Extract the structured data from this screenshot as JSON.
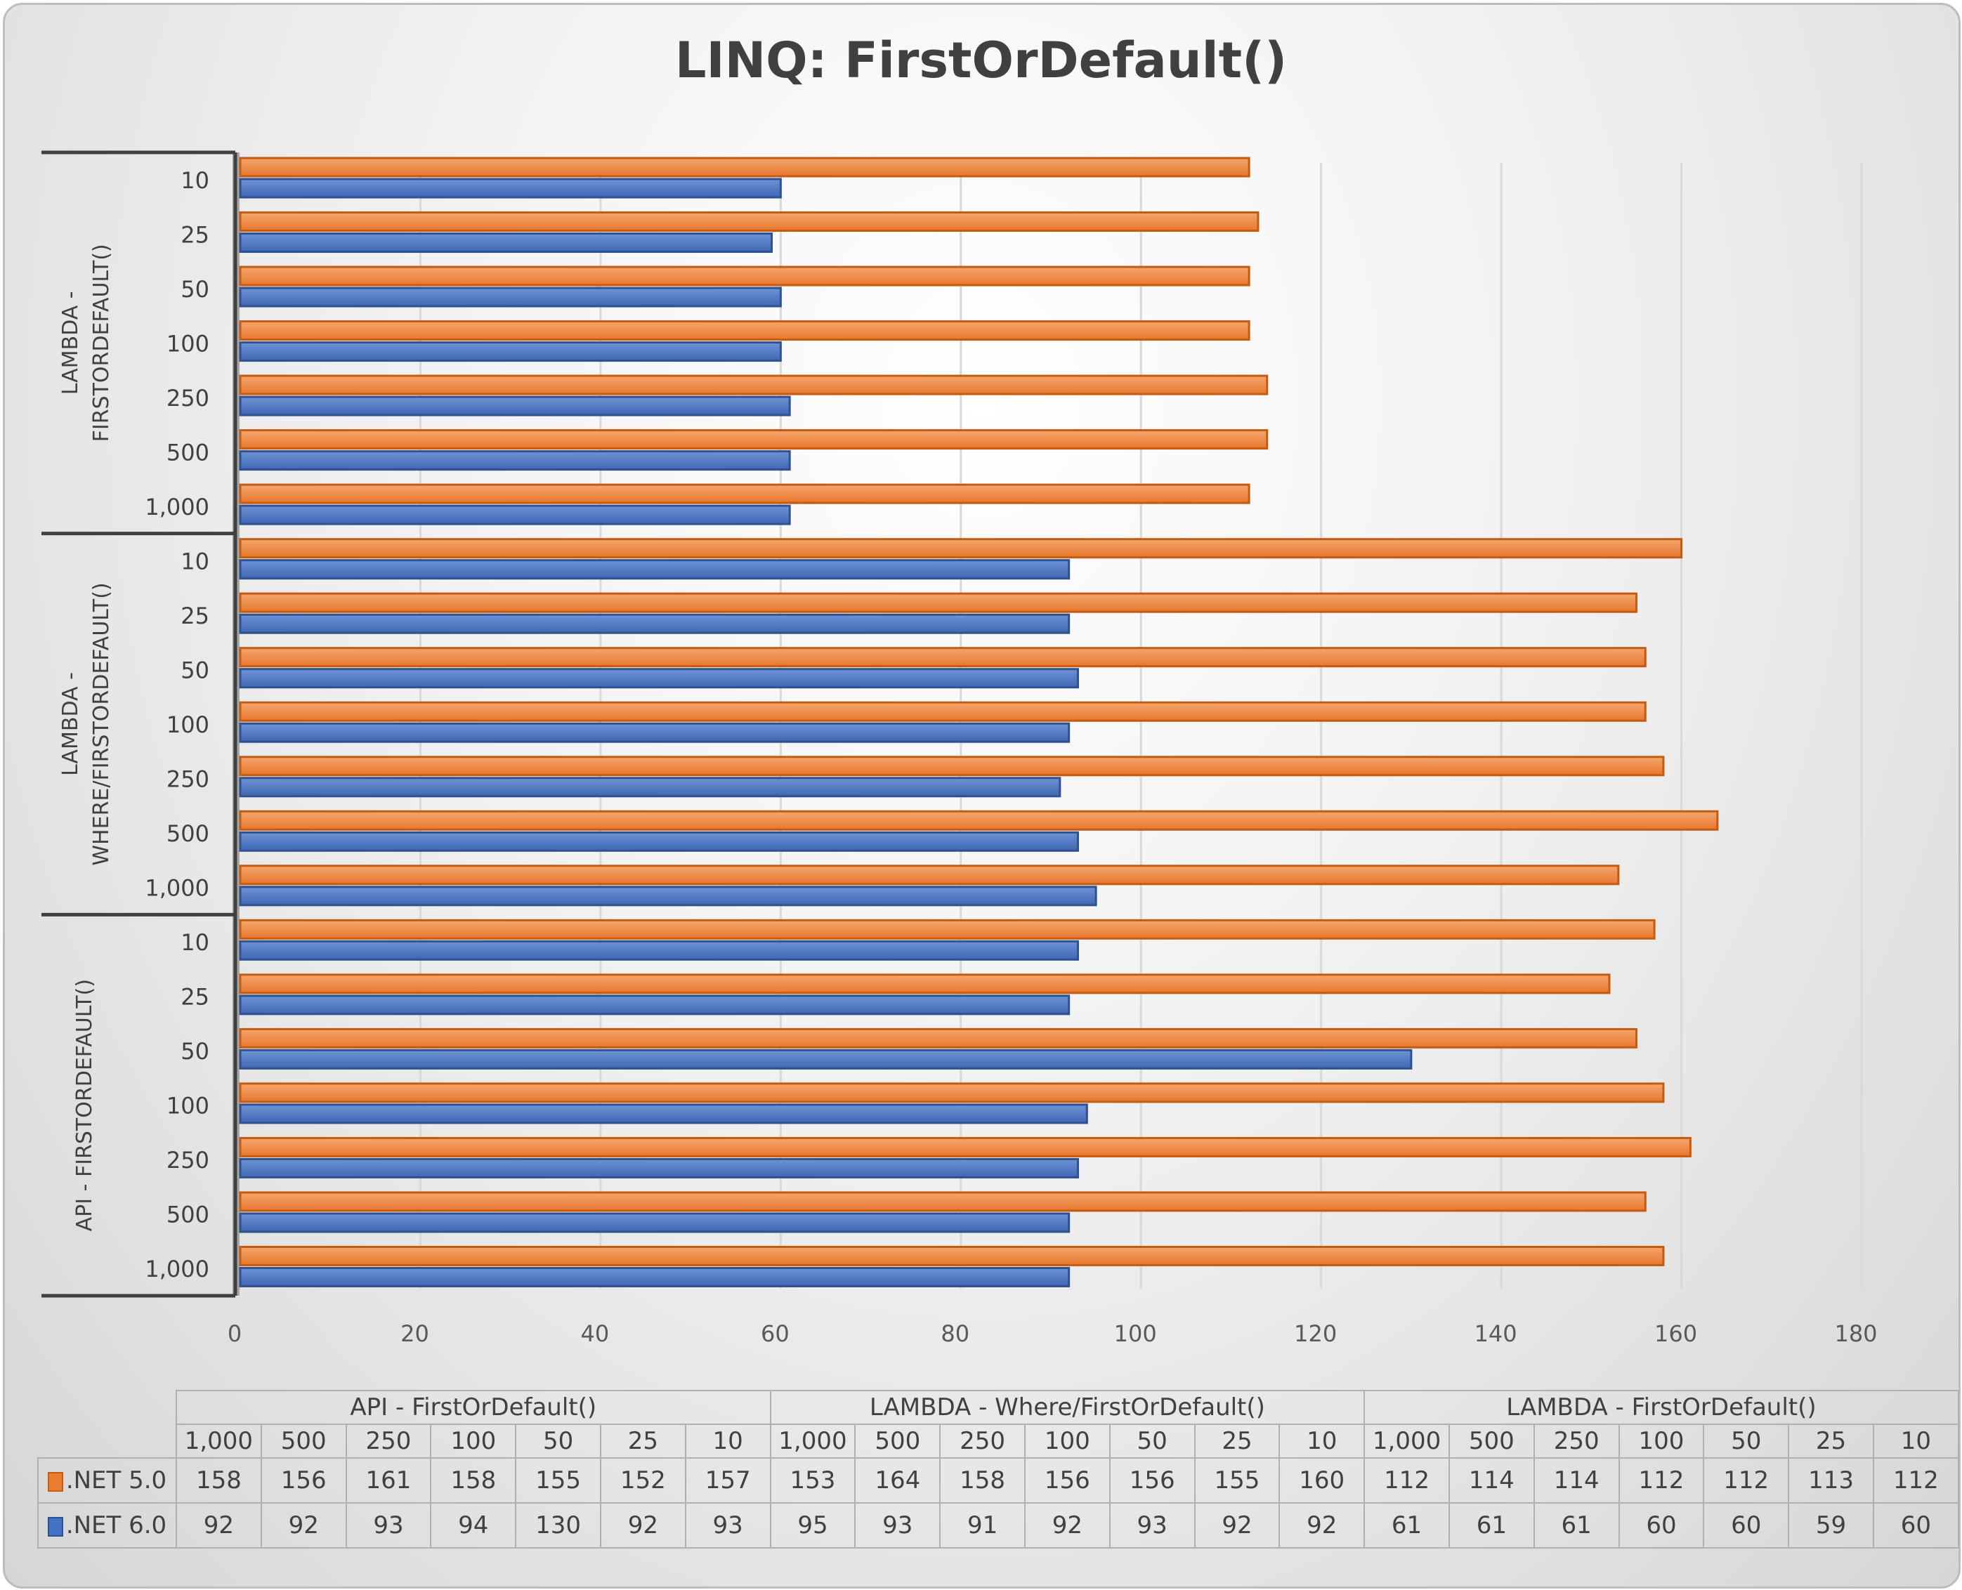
{
  "chart_data": {
    "type": "bar",
    "orientation": "horizontal",
    "title": "LINQ: FirstOrDefault()",
    "xlim": [
      0,
      180
    ],
    "xticks": [
      0,
      20,
      40,
      60,
      80,
      100,
      120,
      140,
      160,
      180
    ],
    "grid": true,
    "legend": "data-table-bottom",
    "categories": [
      "1,000",
      "500",
      "250",
      "100",
      "50",
      "25",
      "10"
    ],
    "groups": [
      {
        "name": "API - FirstOrDefault()",
        "axis_label": "API - FIRSTORDEFAULT()",
        "net5": [
          158,
          156,
          161,
          158,
          155,
          152,
          157
        ],
        "net6": [
          92,
          92,
          93,
          94,
          130,
          92,
          93
        ]
      },
      {
        "name": "LAMBDA - Where/FirstOrDefault()",
        "axis_label": "LAMBDA - WHERE/FIRSTORDEFAULT()",
        "net5": [
          153,
          164,
          158,
          156,
          156,
          155,
          160
        ],
        "net6": [
          95,
          93,
          91,
          92,
          93,
          92,
          92
        ]
      },
      {
        "name": "LAMBDA - FirstOrDefault()",
        "axis_label": "LAMBDA - FIRSTORDEFAULT()",
        "net5": [
          112,
          114,
          114,
          112,
          112,
          113,
          112
        ],
        "net6": [
          61,
          61,
          61,
          60,
          60,
          59,
          60
        ]
      }
    ],
    "series": [
      {
        "name": ".NET 5.0",
        "key": "net5",
        "color": "#ED7D31"
      },
      {
        "name": ".NET 6.0",
        "key": "net6",
        "color": "#4472C4"
      }
    ]
  }
}
